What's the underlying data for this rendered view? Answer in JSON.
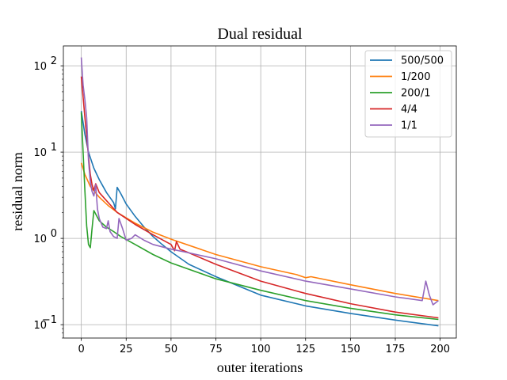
{
  "chart_data": {
    "type": "line",
    "title": "Dual residual",
    "xlabel": "outer iterations",
    "ylabel": "residual norm",
    "xlim": [
      -10,
      209
    ],
    "ylim": [
      0.07,
      170
    ],
    "yscale": "log",
    "grid": true,
    "legend_position": "top-right",
    "x_ticks": [
      0,
      25,
      50,
      75,
      100,
      125,
      150,
      175,
      200
    ],
    "y_ticks": [
      {
        "value": 0.1,
        "base": "10",
        "exp": "−1"
      },
      {
        "value": 1,
        "base": "10",
        "exp": "0"
      },
      {
        "value": 10,
        "base": "10",
        "exp": "1"
      },
      {
        "value": 100,
        "base": "10",
        "exp": "2"
      }
    ],
    "series": [
      {
        "name": "500/500",
        "color": "#1f77b4",
        "points": [
          [
            0,
            30
          ],
          [
            2,
            16
          ],
          [
            4,
            10
          ],
          [
            7,
            6.5
          ],
          [
            10,
            4.8
          ],
          [
            14,
            3.4
          ],
          [
            18,
            2.6
          ],
          [
            19,
            2.2
          ],
          [
            20,
            3.9
          ],
          [
            22,
            3.3
          ],
          [
            25,
            2.5
          ],
          [
            30,
            1.8
          ],
          [
            35,
            1.35
          ],
          [
            40,
            1.05
          ],
          [
            45,
            0.85
          ],
          [
            50,
            0.7
          ],
          [
            60,
            0.5
          ],
          [
            75,
            0.36
          ],
          [
            100,
            0.22
          ],
          [
            125,
            0.165
          ],
          [
            150,
            0.135
          ],
          [
            175,
            0.113
          ],
          [
            199,
            0.097
          ]
        ]
      },
      {
        "name": "1/200",
        "color": "#ff7f0e",
        "points": [
          [
            0,
            7.5
          ],
          [
            2,
            5.5
          ],
          [
            5,
            4.0
          ],
          [
            10,
            3.0
          ],
          [
            15,
            2.4
          ],
          [
            20,
            2.0
          ],
          [
            30,
            1.5
          ],
          [
            40,
            1.18
          ],
          [
            50,
            0.98
          ],
          [
            75,
            0.65
          ],
          [
            100,
            0.47
          ],
          [
            120,
            0.38
          ],
          [
            125,
            0.35
          ],
          [
            128,
            0.36
          ],
          [
            150,
            0.29
          ],
          [
            175,
            0.23
          ],
          [
            199,
            0.19
          ]
        ]
      },
      {
        "name": "200/1",
        "color": "#2ca02c",
        "points": [
          [
            0,
            29
          ],
          [
            1,
            10
          ],
          [
            2,
            3.5
          ],
          [
            3,
            1.4
          ],
          [
            4,
            0.85
          ],
          [
            5,
            0.78
          ],
          [
            6,
            1.3
          ],
          [
            7,
            2.1
          ],
          [
            10,
            1.6
          ],
          [
            14,
            1.35
          ],
          [
            18,
            1.2
          ],
          [
            22,
            1.05
          ],
          [
            30,
            0.85
          ],
          [
            40,
            0.65
          ],
          [
            50,
            0.52
          ],
          [
            75,
            0.34
          ],
          [
            100,
            0.25
          ],
          [
            125,
            0.19
          ],
          [
            150,
            0.155
          ],
          [
            175,
            0.13
          ],
          [
            199,
            0.115
          ]
        ]
      },
      {
        "name": "4/4",
        "color": "#d62728",
        "points": [
          [
            0,
            75
          ],
          [
            2,
            25
          ],
          [
            4,
            9
          ],
          [
            5,
            5.5
          ],
          [
            6,
            4.2
          ],
          [
            7,
            3.6
          ],
          [
            8,
            4.3
          ],
          [
            10,
            3.4
          ],
          [
            15,
            2.6
          ],
          [
            20,
            2.0
          ],
          [
            30,
            1.45
          ],
          [
            40,
            1.1
          ],
          [
            50,
            0.85
          ],
          [
            52,
            0.72
          ],
          [
            53,
            0.92
          ],
          [
            55,
            0.75
          ],
          [
            60,
            0.68
          ],
          [
            75,
            0.5
          ],
          [
            100,
            0.32
          ],
          [
            125,
            0.23
          ],
          [
            150,
            0.175
          ],
          [
            175,
            0.14
          ],
          [
            199,
            0.12
          ]
        ]
      },
      {
        "name": "1/1",
        "color": "#9467bd",
        "points": [
          [
            0,
            125
          ],
          [
            1,
            60
          ],
          [
            2,
            40
          ],
          [
            3,
            25
          ],
          [
            4,
            8
          ],
          [
            5,
            4.5
          ],
          [
            6,
            3.5
          ],
          [
            7,
            3.1
          ],
          [
            8,
            4.2
          ],
          [
            9,
            2.2
          ],
          [
            10,
            1.7
          ],
          [
            12,
            1.35
          ],
          [
            14,
            1.3
          ],
          [
            15,
            1.6
          ],
          [
            16,
            1.2
          ],
          [
            18,
            1.05
          ],
          [
            20,
            1.0
          ],
          [
            21,
            1.7
          ],
          [
            23,
            1.3
          ],
          [
            25,
            0.95
          ],
          [
            28,
            1.0
          ],
          [
            30,
            1.1
          ],
          [
            35,
            0.95
          ],
          [
            40,
            0.85
          ],
          [
            50,
            0.75
          ],
          [
            60,
            0.68
          ],
          [
            75,
            0.58
          ],
          [
            100,
            0.42
          ],
          [
            125,
            0.32
          ],
          [
            150,
            0.26
          ],
          [
            175,
            0.21
          ],
          [
            190,
            0.19
          ],
          [
            192,
            0.32
          ],
          [
            194,
            0.22
          ],
          [
            196,
            0.17
          ],
          [
            199,
            0.19
          ]
        ]
      }
    ]
  }
}
